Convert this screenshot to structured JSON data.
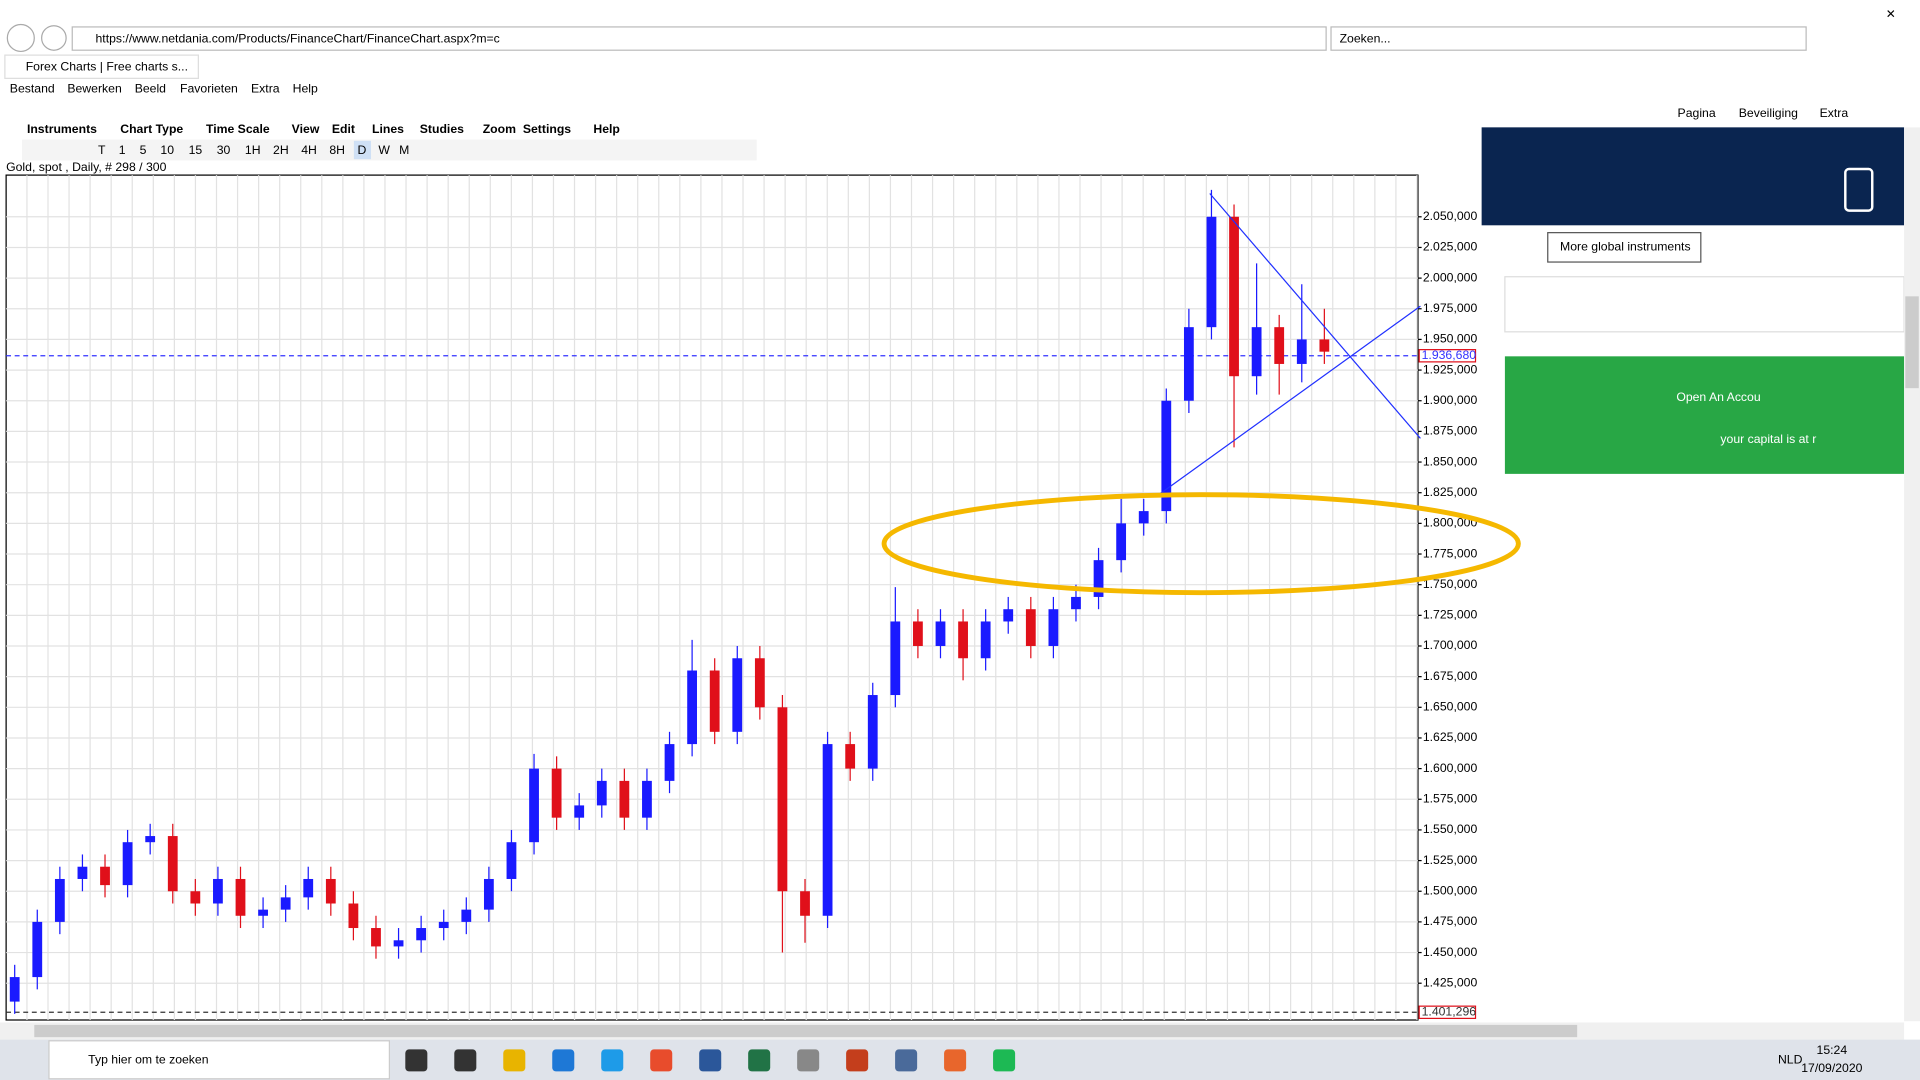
{
  "browser": {
    "url": "https://www.netdania.com/Products/FinanceChart/FinanceChart.aspx?m=c",
    "search": "Zoeken...",
    "tab_title": "Forex Charts | Free charts s...",
    "menu": [
      "Bestand",
      "Bewerken",
      "Beeld",
      "Favorieten",
      "Extra",
      "Help"
    ],
    "toolbar": [
      "Pagina",
      "Beveiliging",
      "Extra"
    ]
  },
  "chart_menu": [
    "Instruments",
    "Chart Type",
    "Time Scale",
    "View",
    "Edit",
    "Lines",
    "Studies",
    "Zoom",
    "Settings",
    "Help"
  ],
  "timeframes": [
    "T",
    "1",
    "5",
    "10",
    "15",
    "30",
    "1H",
    "2H",
    "4H",
    "8H",
    "D",
    "W",
    "M"
  ],
  "chart_data": {
    "type": "candlestick",
    "title": "Gold, spot , Daily, # 298 / 300",
    "up_color": "#1a1aff",
    "down_color": "#e0101a",
    "grid": true,
    "open": [
      1410,
      1430,
      1475,
      1510,
      1520,
      1505,
      1540,
      1545,
      1500,
      1490,
      1510,
      1480,
      1485,
      1495,
      1510,
      1490,
      1470,
      1455,
      1460,
      1470,
      1475,
      1485,
      1510,
      1540,
      1600,
      1560,
      1570,
      1590,
      1560,
      1590,
      1620,
      1680,
      1630,
      1690,
      1650,
      1500,
      1480,
      1620,
      1600,
      1660,
      1720,
      1700,
      1720,
      1690,
      1720,
      1730,
      1700,
      1730,
      1740,
      1770,
      1800,
      1810,
      1900,
      1960,
      2050,
      1920,
      1960,
      1930,
      1950
    ],
    "high": [
      1440,
      1485,
      1520,
      1530,
      1530,
      1550,
      1555,
      1555,
      1510,
      1520,
      1520,
      1495,
      1505,
      1520,
      1520,
      1500,
      1480,
      1470,
      1480,
      1485,
      1495,
      1520,
      1550,
      1612,
      1610,
      1580,
      1600,
      1600,
      1600,
      1630,
      1705,
      1690,
      1700,
      1700,
      1660,
      1510,
      1630,
      1630,
      1670,
      1748,
      1730,
      1730,
      1730,
      1730,
      1740,
      1740,
      1740,
      1750,
      1780,
      1820,
      1820,
      1910,
      1975,
      2072,
      2060,
      2012,
      1970,
      1995,
      1975
    ],
    "low": [
      1400,
      1420,
      1465,
      1500,
      1495,
      1495,
      1530,
      1490,
      1480,
      1480,
      1470,
      1470,
      1475,
      1485,
      1480,
      1460,
      1445,
      1445,
      1450,
      1460,
      1465,
      1475,
      1500,
      1530,
      1550,
      1550,
      1560,
      1550,
      1550,
      1580,
      1610,
      1620,
      1620,
      1640,
      1450,
      1458,
      1470,
      1590,
      1590,
      1650,
      1690,
      1690,
      1672,
      1680,
      1710,
      1690,
      1690,
      1720,
      1730,
      1760,
      1790,
      1800,
      1890,
      1950,
      1862,
      1905,
      1905,
      1915,
      1930
    ],
    "close": [
      1430,
      1475,
      1510,
      1520,
      1505,
      1540,
      1545,
      1500,
      1490,
      1510,
      1480,
      1485,
      1495,
      1510,
      1490,
      1470,
      1455,
      1460,
      1470,
      1475,
      1485,
      1510,
      1540,
      1600,
      1560,
      1570,
      1590,
      1560,
      1590,
      1620,
      1680,
      1630,
      1690,
      1650,
      1500,
      1480,
      1620,
      1600,
      1660,
      1720,
      1700,
      1720,
      1690,
      1720,
      1730,
      1700,
      1730,
      1740,
      1770,
      1800,
      1810,
      1900,
      1960,
      2050,
      1920,
      1960,
      1930,
      1950,
      1940
    ],
    "ylim": [
      1395,
      2084
    ],
    "yticks": [
      {
        "value": 1425,
        "label": "1.425,000"
      },
      {
        "value": 1450,
        "label": "1.450,000"
      },
      {
        "value": 1475,
        "label": "1.475,000"
      },
      {
        "value": 1500,
        "label": "1.500,000"
      },
      {
        "value": 1525,
        "label": "1.525,000"
      },
      {
        "value": 1550,
        "label": "1.550,000"
      },
      {
        "value": 1575,
        "label": "1.575,000"
      },
      {
        "value": 1600,
        "label": "1.600,000"
      },
      {
        "value": 1625,
        "label": "1.625,000"
      },
      {
        "value": 1650,
        "label": "1.650,000"
      },
      {
        "value": 1675,
        "label": "1.675,000"
      },
      {
        "value": 1700,
        "label": "1.700,000"
      },
      {
        "value": 1725,
        "label": "1.725,000"
      },
      {
        "value": 1750,
        "label": "1.750,000"
      },
      {
        "value": 1775,
        "label": "1.775,000"
      },
      {
        "value": 1800,
        "label": "1.800,000"
      },
      {
        "value": 1825,
        "label": "1.825,000"
      },
      {
        "value": 1850,
        "label": "1.850,000"
      },
      {
        "value": 1875,
        "label": "1.875,000"
      },
      {
        "value": 1900,
        "label": "1.900,000"
      },
      {
        "value": 1925,
        "label": "1.925,000"
      },
      {
        "value": 1950,
        "label": "1.950,000"
      },
      {
        "value": 1975,
        "label": "1.975,000"
      },
      {
        "value": 2000,
        "label": "2.000,000"
      },
      {
        "value": 2025,
        "label": "2.025,000"
      },
      {
        "value": 2050,
        "label": "2.050,000"
      }
    ],
    "reference_lines": [
      {
        "value": 1936.68,
        "label": "1.936,680",
        "color": "#3333ff"
      },
      {
        "value": 1401.296,
        "label": "1.401,296",
        "color": "#333333"
      }
    ]
  },
  "sidebar": {
    "button": "More global instruments",
    "banner_title": "Open An Accou",
    "banner_sub": "your capital is at r"
  },
  "taskbar": {
    "search": "Typ hier om te zoeken",
    "lang": "NLD",
    "time": "15:24",
    "date": "17/09/2020"
  }
}
